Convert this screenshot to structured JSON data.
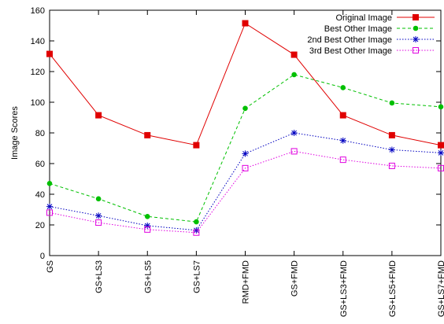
{
  "chart_data": {
    "type": "line",
    "title": "",
    "xlabel": "",
    "ylabel": "Image Scores",
    "ylim": [
      0,
      160
    ],
    "yticks": [
      0,
      20,
      40,
      60,
      80,
      100,
      120,
      140,
      160
    ],
    "grid": false,
    "legend_position": "top-right",
    "categories": [
      "GS",
      "GS+LS3",
      "GS+LS5",
      "GS+LS7",
      "RMD+FMD",
      "GS+FMD",
      "GS+LS3+FMD",
      "GS+LS5+FMD",
      "GS+LS7+FMD"
    ],
    "series": [
      {
        "name": "Original Image",
        "color": "#e00000",
        "dash": "solid",
        "marker": "filled-square",
        "values": [
          131.5,
          91.5,
          78.5,
          72,
          151.5,
          131,
          91.5,
          78.5,
          72
        ]
      },
      {
        "name": "Best Other Image",
        "color": "#00c000",
        "dash": "dashed",
        "marker": "filled-circle",
        "values": [
          47,
          37,
          25.5,
          22,
          96,
          118,
          109.5,
          99.5,
          97
        ]
      },
      {
        "name": "2nd Best Other Image",
        "color": "#0000c0",
        "dash": "dotted",
        "marker": "asterisk",
        "values": [
          32,
          26,
          19.5,
          16.5,
          66.5,
          80,
          75,
          69,
          67
        ]
      },
      {
        "name": "3rd Best Other Image",
        "color": "#e000e0",
        "dash": "dotted",
        "marker": "open-square",
        "values": [
          28,
          21.5,
          17,
          15,
          57,
          68,
          62.5,
          58.5,
          57
        ]
      }
    ]
  }
}
